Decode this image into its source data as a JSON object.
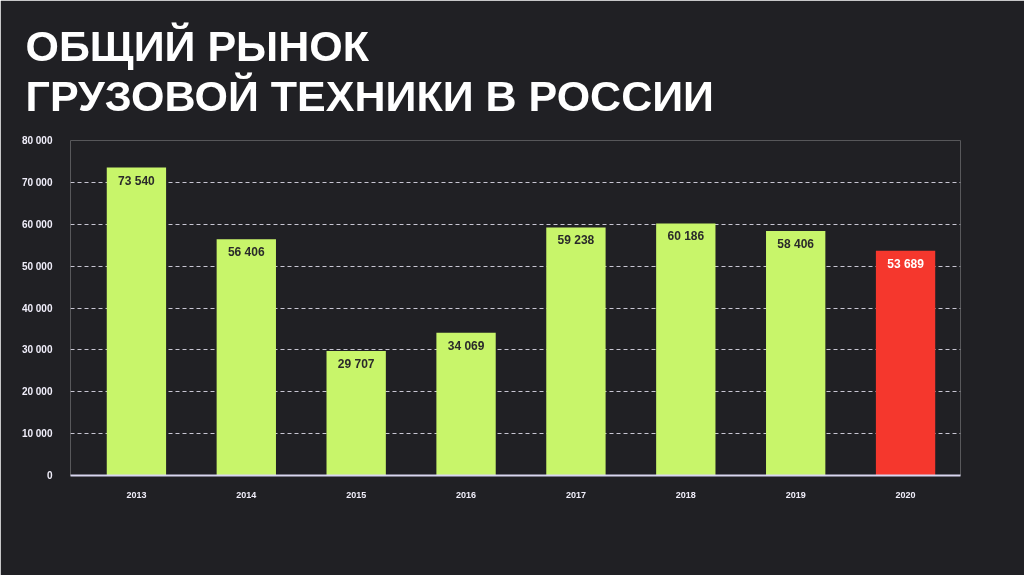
{
  "chart_data": {
    "type": "bar",
    "title": "ОБЩИЙ РЫНОК\nГРУЗОВОЙ ТЕХНИКИ В РОССИИ",
    "categories": [
      "2013",
      "2014",
      "2015",
      "2016",
      "2017",
      "2018",
      "2019",
      "2020"
    ],
    "values": [
      73540,
      56406,
      29707,
      34069,
      59238,
      60186,
      58406,
      53689
    ],
    "colors": [
      "#c8f56a",
      "#c8f56a",
      "#c8f56a",
      "#c8f56a",
      "#c8f56a",
      "#c8f56a",
      "#c8f56a",
      "#f5372d"
    ],
    "value_labels": [
      "73 540",
      "56 406",
      "29 707",
      "34 069",
      "59 238",
      "60 186",
      "58 406",
      "53 689"
    ],
    "ylim": [
      0,
      80000
    ],
    "yticks": [
      0,
      {
        "value": 10000,
        "label": "10 000"
      },
      {
        "value": 20000,
        "label": "20 000"
      },
      {
        "value": 30000,
        "label": "30 000"
      },
      {
        "value": 40000,
        "label": "40 000"
      },
      {
        "value": 50000,
        "label": "50 000"
      },
      {
        "value": 60000,
        "label": "60 000"
      },
      {
        "value": 70000,
        "label": "70 000"
      },
      {
        "value": 80000,
        "label": "80 000"
      }
    ],
    "grid": "y"
  }
}
